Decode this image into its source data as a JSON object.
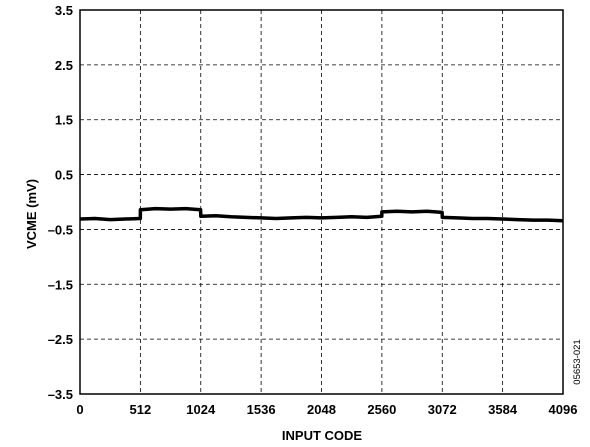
{
  "chart_data": {
    "type": "line",
    "xlabel": "INPUT CODE",
    "ylabel": "VCME (mV)",
    "xlim": [
      0,
      4096
    ],
    "ylim": [
      -3.5,
      3.5
    ],
    "x_ticks": [
      0,
      512,
      1024,
      1536,
      2048,
      2560,
      3072,
      3584,
      4096
    ],
    "y_ticks": [
      3.5,
      2.5,
      1.5,
      0.5,
      -0.5,
      -1.5,
      -2.5,
      -3.5
    ],
    "y_tick_labels": [
      "3.5",
      "2.5",
      "1.5",
      "0.5",
      "–0.5",
      "–1.5",
      "–2.5",
      "–3.5"
    ],
    "grid": true,
    "series": [
      {
        "x": [
          0,
          128,
          256,
          384,
          511,
          512,
          640,
          768,
          896,
          1023,
          1024,
          1152,
          1280,
          1408,
          1536,
          1664,
          1792,
          1920,
          2048,
          2176,
          2304,
          2432,
          2559,
          2560,
          2688,
          2816,
          2944,
          3071,
          3072,
          3200,
          3328,
          3456,
          3584,
          3712,
          3840,
          3968,
          4096
        ],
        "values": [
          -0.31,
          -0.3,
          -0.32,
          -0.31,
          -0.3,
          -0.14,
          -0.12,
          -0.13,
          -0.12,
          -0.14,
          -0.26,
          -0.25,
          -0.27,
          -0.28,
          -0.29,
          -0.3,
          -0.29,
          -0.28,
          -0.29,
          -0.28,
          -0.27,
          -0.28,
          -0.26,
          -0.18,
          -0.17,
          -0.18,
          -0.17,
          -0.19,
          -0.28,
          -0.29,
          -0.3,
          -0.3,
          -0.31,
          -0.32,
          -0.33,
          -0.33,
          -0.34
        ]
      }
    ]
  },
  "figure_code": "05653-021"
}
